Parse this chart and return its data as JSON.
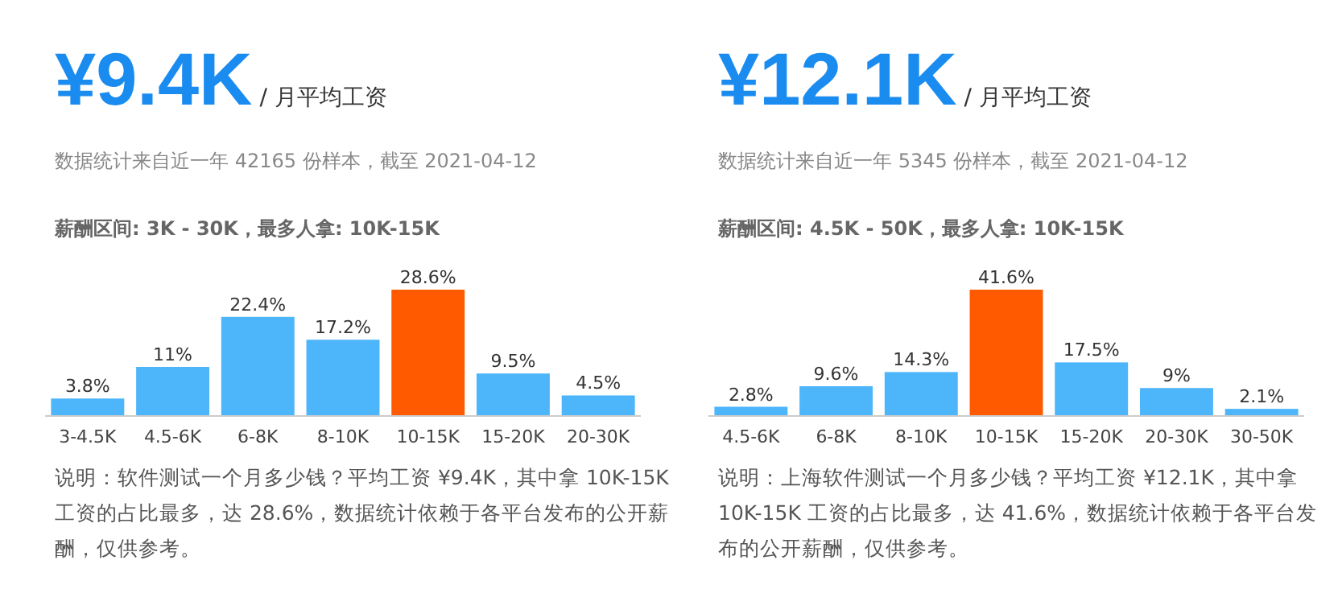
{
  "chart_data": [
    {
      "type": "bar",
      "title": "¥9.4K",
      "subtitle": "/ 月平均工资",
      "annotations": [
        "数据统计来自近一年 42165 份样本，截至 2021-04-12",
        "薪酬区间: 3K - 30K，最多人拿: 10K-15K",
        "说明：软件测试一个月多少钱？平均工资 ¥9.4K，其中拿 10K-15K 工资的占比最多，达 28.6%，数据统计依赖于各平台发布的公开薪酬，仅供参考。"
      ],
      "categories": [
        "3-4.5K",
        "4.5-6K",
        "6-8K",
        "8-10K",
        "10-15K",
        "15-20K",
        "20-30K"
      ],
      "values": [
        3.8,
        11,
        22.4,
        17.2,
        28.6,
        9.5,
        4.5
      ],
      "value_labels": [
        "3.8%",
        "11%",
        "22.4%",
        "17.2%",
        "28.6%",
        "9.5%",
        "4.5%"
      ],
      "colors": [
        "#4db6fb",
        "#4db6fb",
        "#4db6fb",
        "#4db6fb",
        "#ff5a00",
        "#4db6fb",
        "#4db6fb"
      ]
    },
    {
      "type": "bar",
      "title": "¥12.1K",
      "subtitle": "/ 月平均工资",
      "annotations": [
        "数据统计来自近一年 5345 份样本，截至 2021-04-12",
        "薪酬区间: 4.5K - 50K，最多人拿: 10K-15K",
        "说明：上海软件测试一个月多少钱？平均工资 ¥12.1K，其中拿 10K-15K 工资的占比最多，达 41.6%，数据统计依赖于各平台发布的公开薪酬，仅供参考。"
      ],
      "categories": [
        "4.5-6K",
        "6-8K",
        "8-10K",
        "10-15K",
        "15-20K",
        "20-30K",
        "30-50K"
      ],
      "values": [
        2.8,
        9.6,
        14.3,
        41.6,
        17.5,
        9,
        2.1
      ],
      "value_labels": [
        "2.8%",
        "9.6%",
        "14.3%",
        "41.6%",
        "17.5%",
        "9%",
        "2.1%"
      ],
      "colors": [
        "#4db6fb",
        "#4db6fb",
        "#4db6fb",
        "#ff5a00",
        "#4db6fb",
        "#4db6fb",
        "#4db6fb"
      ]
    }
  ]
}
